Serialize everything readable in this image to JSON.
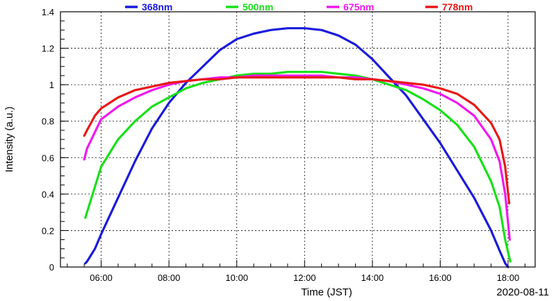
{
  "chart_data": {
    "type": "line",
    "xlabel": "Time (JST)",
    "ylabel": "Intensity (a.u.)",
    "date_label": "2020-08-11",
    "xlim": [
      "04:48",
      "18:48"
    ],
    "ylim": [
      0,
      1.4
    ],
    "grid": true,
    "legend_placement": "top",
    "x_ticks": [
      "06:00",
      "08:00",
      "10:00",
      "12:00",
      "14:00",
      "16:00",
      "18:00"
    ],
    "y_ticks": [
      "0",
      "0.2",
      "0.4",
      "0.6",
      "0.8",
      "1",
      "1.2",
      "1.4"
    ],
    "series": [
      {
        "name": "368nm",
        "color": "#1a1adc",
        "points": [
          [
            "05:32",
            0.02
          ],
          [
            "05:35",
            0.03
          ],
          [
            "05:49",
            0.1
          ],
          [
            "06:00",
            0.18
          ],
          [
            "06:30",
            0.38
          ],
          [
            "07:00",
            0.58
          ],
          [
            "07:30",
            0.76
          ],
          [
            "08:00",
            0.9
          ],
          [
            "08:30",
            1.01
          ],
          [
            "09:00",
            1.1
          ],
          [
            "09:30",
            1.19
          ],
          [
            "10:00",
            1.25
          ],
          [
            "10:30",
            1.28
          ],
          [
            "11:00",
            1.3
          ],
          [
            "11:30",
            1.31
          ],
          [
            "12:00",
            1.31
          ],
          [
            "12:30",
            1.3
          ],
          [
            "13:00",
            1.27
          ],
          [
            "13:30",
            1.22
          ],
          [
            "14:00",
            1.14
          ],
          [
            "14:30",
            1.04
          ],
          [
            "15:00",
            0.94
          ],
          [
            "15:30",
            0.81
          ],
          [
            "16:00",
            0.68
          ],
          [
            "16:30",
            0.53
          ],
          [
            "17:00",
            0.38
          ],
          [
            "17:30",
            0.2
          ],
          [
            "17:45",
            0.09
          ],
          [
            "17:55",
            0.02
          ],
          [
            "18:00",
            0.0
          ]
        ]
      },
      {
        "name": "500nm",
        "color": "#18e018",
        "points": [
          [
            "05:32",
            0.27
          ],
          [
            "05:35",
            0.3
          ],
          [
            "05:49",
            0.44
          ],
          [
            "06:00",
            0.55
          ],
          [
            "06:30",
            0.7
          ],
          [
            "07:00",
            0.8
          ],
          [
            "07:30",
            0.88
          ],
          [
            "08:00",
            0.93
          ],
          [
            "08:30",
            0.98
          ],
          [
            "09:00",
            1.01
          ],
          [
            "09:30",
            1.03
          ],
          [
            "10:00",
            1.05
          ],
          [
            "10:30",
            1.06
          ],
          [
            "11:00",
            1.06
          ],
          [
            "11:30",
            1.07
          ],
          [
            "12:00",
            1.07
          ],
          [
            "12:30",
            1.07
          ],
          [
            "13:00",
            1.06
          ],
          [
            "13:30",
            1.05
          ],
          [
            "14:00",
            1.03
          ],
          [
            "14:30",
            1.0
          ],
          [
            "15:00",
            0.97
          ],
          [
            "15:30",
            0.92
          ],
          [
            "16:00",
            0.86
          ],
          [
            "16:30",
            0.78
          ],
          [
            "17:00",
            0.66
          ],
          [
            "17:30",
            0.47
          ],
          [
            "17:45",
            0.33
          ],
          [
            "17:55",
            0.15
          ],
          [
            "18:04",
            0.03
          ]
        ]
      },
      {
        "name": "675nm",
        "color": "#f018f0",
        "points": [
          [
            "05:30",
            0.59
          ],
          [
            "05:35",
            0.65
          ],
          [
            "05:49",
            0.74
          ],
          [
            "06:00",
            0.81
          ],
          [
            "06:30",
            0.88
          ],
          [
            "07:00",
            0.93
          ],
          [
            "07:30",
            0.97
          ],
          [
            "08:00",
            1.0
          ],
          [
            "08:30",
            1.02
          ],
          [
            "09:00",
            1.03
          ],
          [
            "09:30",
            1.04
          ],
          [
            "10:00",
            1.04
          ],
          [
            "10:30",
            1.05
          ],
          [
            "11:00",
            1.05
          ],
          [
            "11:30",
            1.05
          ],
          [
            "12:00",
            1.05
          ],
          [
            "12:30",
            1.05
          ],
          [
            "13:00",
            1.04
          ],
          [
            "13:30",
            1.04
          ],
          [
            "14:00",
            1.03
          ],
          [
            "14:30",
            1.02
          ],
          [
            "15:00",
            1.0
          ],
          [
            "15:30",
            0.98
          ],
          [
            "16:00",
            0.95
          ],
          [
            "16:30",
            0.9
          ],
          [
            "17:00",
            0.83
          ],
          [
            "17:30",
            0.7
          ],
          [
            "17:45",
            0.58
          ],
          [
            "17:55",
            0.4
          ],
          [
            "18:03",
            0.15
          ]
        ]
      },
      {
        "name": "778nm",
        "color": "#e81818",
        "points": [
          [
            "05:30",
            0.72
          ],
          [
            "05:35",
            0.75
          ],
          [
            "05:49",
            0.83
          ],
          [
            "06:00",
            0.87
          ],
          [
            "06:30",
            0.93
          ],
          [
            "07:00",
            0.97
          ],
          [
            "07:30",
            0.99
          ],
          [
            "08:00",
            1.01
          ],
          [
            "08:30",
            1.02
          ],
          [
            "09:00",
            1.03
          ],
          [
            "09:30",
            1.03
          ],
          [
            "10:00",
            1.04
          ],
          [
            "10:30",
            1.04
          ],
          [
            "11:00",
            1.04
          ],
          [
            "11:30",
            1.04
          ],
          [
            "12:00",
            1.04
          ],
          [
            "12:30",
            1.04
          ],
          [
            "13:00",
            1.04
          ],
          [
            "13:30",
            1.03
          ],
          [
            "14:00",
            1.03
          ],
          [
            "14:30",
            1.02
          ],
          [
            "15:00",
            1.01
          ],
          [
            "15:30",
            1.0
          ],
          [
            "16:00",
            0.98
          ],
          [
            "16:30",
            0.95
          ],
          [
            "17:00",
            0.89
          ],
          [
            "17:30",
            0.79
          ],
          [
            "17:45",
            0.7
          ],
          [
            "17:55",
            0.55
          ],
          [
            "18:02",
            0.35
          ]
        ]
      }
    ]
  }
}
